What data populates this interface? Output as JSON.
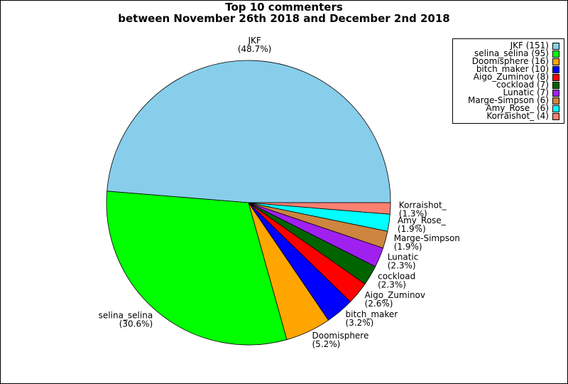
{
  "chart_data": {
    "type": "pie",
    "title": [
      "Top 10 commenters",
      "between November 26th 2018 and December 2nd 2018"
    ],
    "legend_position": "top-right",
    "slices": [
      {
        "name": "JKF",
        "value": 151,
        "percent": "48.7%",
        "legend": "JKF (151)",
        "color": "#87CEEB"
      },
      {
        "name": "selina_selina",
        "value": 95,
        "percent": "30.6%",
        "legend": "selina_selina (95)",
        "color": "#00FF00"
      },
      {
        "name": "Doomisphere",
        "value": 16,
        "percent": "5.2%",
        "legend": "Doomisphere (16)",
        "color": "#FFA500"
      },
      {
        "name": "bitch_maker",
        "value": 10,
        "percent": "3.2%",
        "legend": "bitch_maker (10)",
        "color": "#0000FF"
      },
      {
        "name": "Aigo_Zuminov",
        "value": 8,
        "percent": "2.6%",
        "legend": "Aigo_Zuminov (8)",
        "color": "#FF0000"
      },
      {
        "name": "cockload",
        "value": 7,
        "percent": "2.3%",
        "legend": "cockload (7)",
        "color": "#006400"
      },
      {
        "name": "Lunatic",
        "value": 7,
        "percent": "2.3%",
        "legend": "Lunatic (7)",
        "color": "#A020F0"
      },
      {
        "name": "Marge-Simpson",
        "value": 6,
        "percent": "1.9%",
        "legend": "Marge-Simpson (6)",
        "color": "#CD853F"
      },
      {
        "name": "Amy_Rose_",
        "value": 6,
        "percent": "1.9%",
        "legend": "Amy_Rose_ (6)",
        "color": "#00FFFF"
      },
      {
        "name": "Korraishot_",
        "value": 4,
        "percent": "1.3%",
        "legend": "Korraishot_ (4)",
        "color": "#FA8072"
      }
    ]
  }
}
